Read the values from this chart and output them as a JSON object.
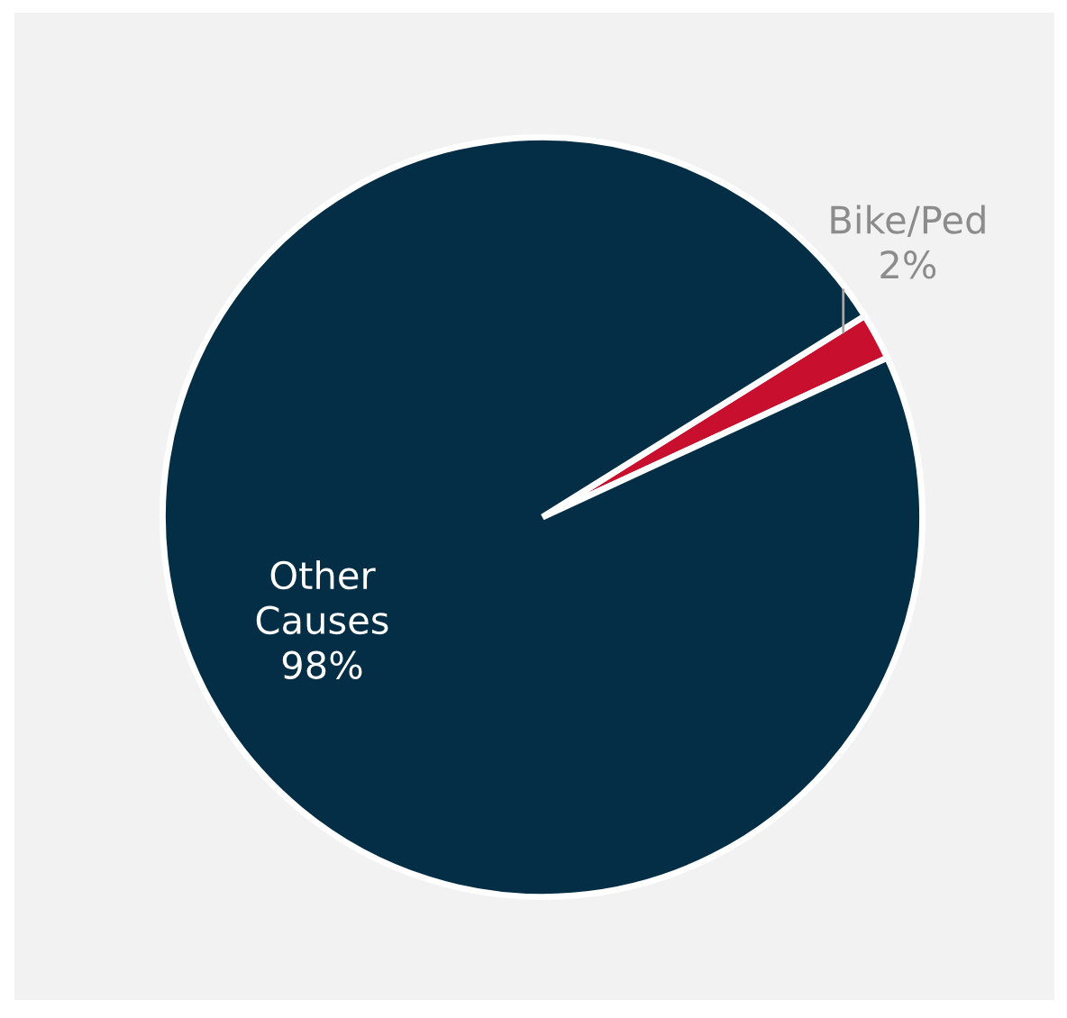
{
  "chart_data": {
    "type": "pie",
    "categories": [
      "Bike/Ped",
      "Other Causes"
    ],
    "values": [
      2,
      98
    ],
    "colors": [
      "#c8102e",
      "#042e46"
    ],
    "value_labels": [
      "2%",
      "98%"
    ],
    "legend": false
  }
}
